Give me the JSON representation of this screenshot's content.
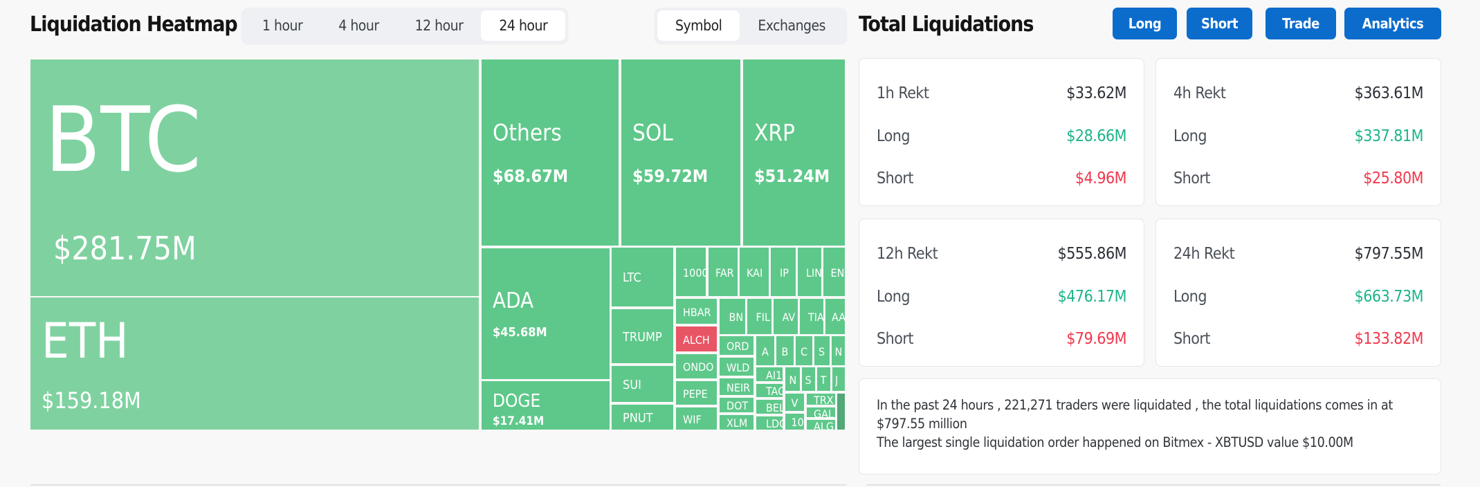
{
  "heatmap": {
    "title": "Liquidation Heatmap",
    "time_tabs": [
      "1 hour",
      "4 hour",
      "12 hour",
      "24 hour"
    ],
    "active_time_tab": "24 hour",
    "group_tabs": [
      "Symbol",
      "Exchanges"
    ],
    "active_group_tab": "Symbol",
    "colors": {
      "btc_eth": "#7fd2a0",
      "long": "#5ec88a",
      "short": "#e85565",
      "other": "#52a877"
    },
    "cells": [
      {
        "label": "BTC",
        "value": "$281.75M"
      },
      {
        "label": "ETH",
        "value": "$159.18M"
      },
      {
        "label": "Others",
        "value": "$68.67M"
      },
      {
        "label": "SOL",
        "value": "$59.72M"
      },
      {
        "label": "XRP",
        "value": "$51.24M"
      },
      {
        "label": "ADA",
        "value": "$45.68M"
      },
      {
        "label": "DOGE",
        "value": "$17.41M"
      },
      {
        "label": "LTC"
      },
      {
        "label": "TRUMP"
      },
      {
        "label": "SUI"
      },
      {
        "label": "PNUT"
      },
      {
        "label": "1000"
      },
      {
        "label": "FAR"
      },
      {
        "label": "KAI"
      },
      {
        "label": "IP"
      },
      {
        "label": "LIN"
      },
      {
        "label": "EN"
      },
      {
        "label": "HBAR"
      },
      {
        "label": "ALCH",
        "short": true
      },
      {
        "label": "ONDO"
      },
      {
        "label": "PEPE"
      },
      {
        "label": "WIF"
      },
      {
        "label": "BN"
      },
      {
        "label": "FIL"
      },
      {
        "label": "AV"
      },
      {
        "label": "TIA"
      },
      {
        "label": "AA"
      },
      {
        "label": "ORD"
      },
      {
        "label": "WLD"
      },
      {
        "label": "NEIR"
      },
      {
        "label": "DOT"
      },
      {
        "label": "XLM"
      },
      {
        "label": "A"
      },
      {
        "label": "B"
      },
      {
        "label": "C"
      },
      {
        "label": "S"
      },
      {
        "label": "N"
      },
      {
        "label": "AI1"
      },
      {
        "label": "TAO"
      },
      {
        "label": "BEL"
      },
      {
        "label": "LDO"
      },
      {
        "label": "N"
      },
      {
        "label": "S"
      },
      {
        "label": "T"
      },
      {
        "label": "J"
      },
      {
        "label": "V"
      },
      {
        "label": "10"
      },
      {
        "label": "TRX"
      },
      {
        "label": "GAL"
      },
      {
        "label": "ALG"
      },
      {
        "label": ""
      }
    ]
  },
  "totals": {
    "title": "Total Liquidations",
    "buttons": [
      "Long",
      "Short",
      "Trade",
      "Analytics"
    ],
    "cards": [
      {
        "label": "1h Rekt",
        "total": "$33.62M",
        "long_label": "Long",
        "long": "$28.66M",
        "short_label": "Short",
        "short": "$4.96M"
      },
      {
        "label": "4h Rekt",
        "total": "$363.61M",
        "long_label": "Long",
        "long": "$337.81M",
        "short_label": "Short",
        "short": "$25.80M"
      },
      {
        "label": "12h Rekt",
        "total": "$555.86M",
        "long_label": "Long",
        "long": "$476.17M",
        "short_label": "Short",
        "short": "$79.69M"
      },
      {
        "label": "24h Rekt",
        "total": "$797.55M",
        "long_label": "Long",
        "long": "$663.73M",
        "short_label": "Short",
        "short": "$133.82M"
      }
    ],
    "summary_line1": "In the past 24 hours , 221,271 traders were liquidated , the total liquidations comes in at $797.55 million",
    "summary_line2": "The largest single liquidation order happened on Bitmex - XBTUSD value $10.00M"
  }
}
